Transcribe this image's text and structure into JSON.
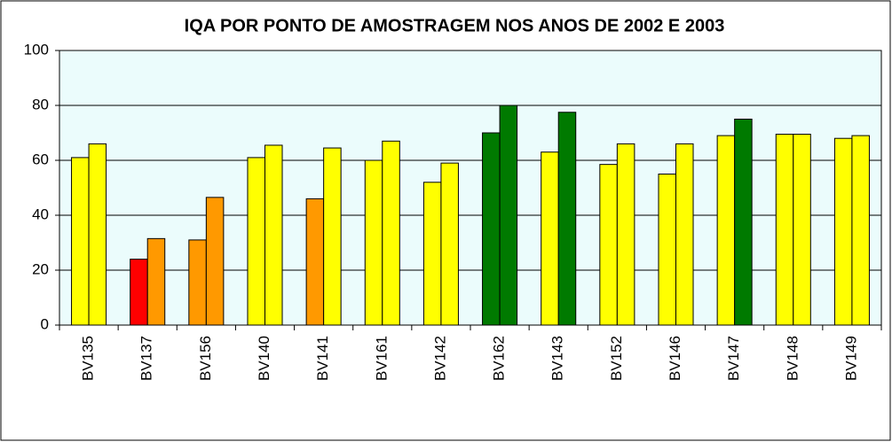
{
  "chart_data": {
    "type": "bar",
    "title": "IQA POR PONTO DE AMOSTRAGEM NOS ANOS DE 2002 E 2003",
    "categories": [
      "BV135",
      "BV137",
      "BV156",
      "BV140",
      "BV141",
      "BV161",
      "BV142",
      "BV162",
      "BV143",
      "BV152",
      "BV146",
      "BV147",
      "BV148",
      "BV149"
    ],
    "series": [
      {
        "values": [
          61,
          24,
          31,
          61,
          46,
          60,
          52,
          70,
          63,
          58.5,
          55,
          69,
          69.5,
          68
        ],
        "colors": [
          "#ffff00",
          "#ff0000",
          "#ff9900",
          "#ffff00",
          "#ff9900",
          "#ffff00",
          "#ffff00",
          "#007a00",
          "#ffff00",
          "#ffff00",
          "#ffff00",
          "#ffff00",
          "#ffff00",
          "#ffff00"
        ]
      },
      {
        "values": [
          66,
          31.5,
          46.5,
          65.5,
          64.5,
          67,
          59,
          80,
          77.5,
          66,
          66,
          75,
          69.5,
          69
        ],
        "colors": [
          "#ffff00",
          "#ff9900",
          "#ff9900",
          "#ffff00",
          "#ffff00",
          "#ffff00",
          "#ffff00",
          "#007a00",
          "#007a00",
          "#ffff00",
          "#ffff00",
          "#007a00",
          "#ffff00",
          "#ffff00"
        ]
      }
    ],
    "ylim": [
      0,
      100
    ],
    "yticks": [
      0,
      20,
      40,
      60,
      80,
      100
    ],
    "grid": true,
    "plot_background": "#ebfcfc"
  }
}
